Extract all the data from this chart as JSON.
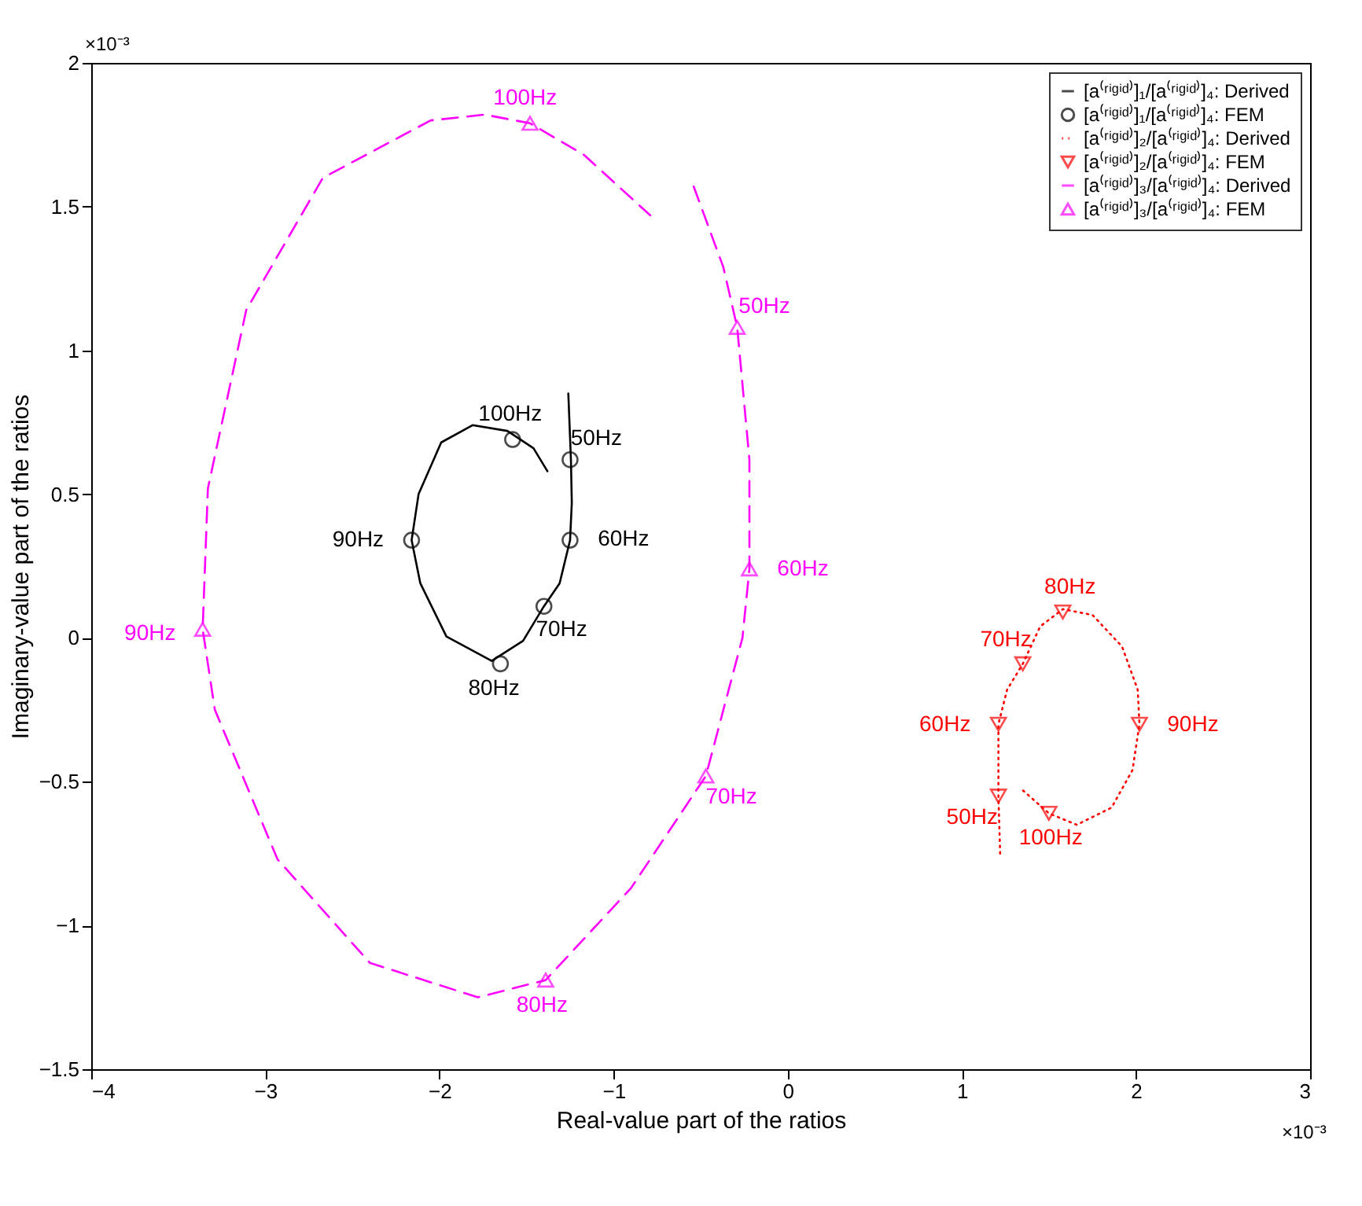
{
  "chart_data": {
    "type": "line",
    "xlabel": "Real-value part of the ratios",
    "ylabel": "Imaginary-value part of the ratios",
    "xlim": [
      -4,
      3
    ],
    "xticks": [
      -4,
      -3,
      -2,
      -1,
      0,
      1,
      2,
      3
    ],
    "ylim": [
      -1.5,
      2
    ],
    "yticks": [
      -1.5,
      -1,
      -0.5,
      0,
      0.5,
      1,
      1.5,
      2
    ],
    "grid": false,
    "legend": "top right",
    "annotations": [
      "×10⁻³",
      "×10⁻³",
      {
        "text": "50Hz",
        "x": -1.25,
        "y": 0.62
      },
      {
        "text": "60Hz",
        "x": -1.25,
        "y": 0.34
      },
      {
        "text": "70Hz",
        "x": -1.4,
        "y": 0.11
      },
      {
        "text": "80Hz",
        "x": -1.65,
        "y": -0.09
      },
      {
        "text": "90Hz",
        "x": -2.16,
        "y": 0.34
      },
      {
        "text": "100Hz",
        "x": -1.58,
        "y": 0.69
      },
      {
        "text": "50Hz",
        "x": 1.21,
        "y": -0.55
      },
      {
        "text": "60Hz",
        "x": 1.21,
        "y": -0.3
      },
      {
        "text": "70Hz",
        "x": 1.35,
        "y": -0.09
      },
      {
        "text": "80Hz",
        "x": 1.58,
        "y": 0.09
      },
      {
        "text": "90Hz",
        "x": 2.02,
        "y": -0.3
      },
      {
        "text": "100Hz",
        "x": 1.5,
        "y": -0.61
      },
      {
        "text": "50Hz",
        "x": -0.29,
        "y": 1.08
      },
      {
        "text": "60Hz",
        "x": -0.22,
        "y": 0.24
      },
      {
        "text": "70Hz",
        "x": -0.47,
        "y": -0.48
      },
      {
        "text": "80Hz",
        "x": -1.39,
        "y": -1.19
      },
      {
        "text": "90Hz",
        "x": -3.36,
        "y": 0.03
      },
      {
        "text": "100Hz",
        "x": -1.48,
        "y": 1.79
      }
    ],
    "series": [
      {
        "name": "[a⁽ʳⁱᵍⁱᵈ⁾]₁/[a⁽ʳⁱᵍⁱᵈ⁾]₄: Derived",
        "color": "#000000",
        "line_style": "solid",
        "marker": "none",
        "x": [
          -1.26,
          -1.245,
          -1.24,
          -1.25,
          -1.31,
          -1.4,
          -1.52,
          -1.7,
          -1.96,
          -2.11,
          -2.16,
          -2.12,
          -1.99,
          -1.81,
          -1.61,
          -1.46,
          -1.38
        ],
        "values": [
          0.85,
          0.62,
          0.47,
          0.34,
          0.19,
          0.11,
          -0.01,
          -0.08,
          0.005,
          0.19,
          0.34,
          0.5,
          0.68,
          0.74,
          0.72,
          0.66,
          0.58
        ]
      },
      {
        "name": "[a⁽ʳⁱᵍⁱᵈ⁾]₁/[a⁽ʳⁱᵍⁱᵈ⁾]₄: FEM",
        "type": "scatter",
        "color": "#000000",
        "marker": "circle",
        "x": [
          -1.25,
          -1.25,
          -1.4,
          -1.65,
          -2.16,
          -1.58
        ],
        "values": [
          0.62,
          0.34,
          0.11,
          -0.09,
          0.34,
          0.69
        ]
      },
      {
        "name": "[a⁽ʳⁱᵍⁱᵈ⁾]₂/[a⁽ʳⁱᵍⁱᵈ⁾]₄: Derived",
        "color": "#ff0000",
        "line_style": "dotted",
        "marker": "none",
        "x": [
          1.22,
          1.21,
          1.21,
          1.26,
          1.35,
          1.45,
          1.58,
          1.75,
          1.92,
          2.01,
          2.02,
          1.98,
          1.86,
          1.66,
          1.5,
          1.35
        ],
        "values": [
          -0.75,
          -0.55,
          -0.3,
          -0.18,
          -0.09,
          0.04,
          0.1,
          0.08,
          -0.03,
          -0.18,
          -0.3,
          -0.46,
          -0.59,
          -0.65,
          -0.61,
          -0.53
        ]
      },
      {
        "name": "[a⁽ʳⁱᵍⁱᵈ⁾]₂/[a⁽ʳⁱᵍⁱᵈ⁾]₄: FEM",
        "type": "scatter",
        "color": "#ff0000",
        "marker": "triangle-down",
        "x": [
          1.21,
          1.21,
          1.35,
          1.58,
          2.02,
          1.5
        ],
        "values": [
          -0.55,
          -0.3,
          -0.09,
          0.09,
          -0.3,
          -0.61
        ]
      },
      {
        "name": "[a⁽ʳⁱᵍⁱᵈ⁾]₃/[a⁽ʳⁱᵍⁱᵈ⁾]₄: Derived",
        "color": "#ff00ff",
        "line_style": "dashed",
        "marker": "none",
        "x": [
          -0.54,
          -0.37,
          -0.29,
          -0.22,
          -0.22,
          -0.26,
          -0.47,
          -0.9,
          -1.39,
          -1.78,
          -2.4,
          -2.93,
          -3.29,
          -3.36,
          -3.33,
          -3.11,
          -2.67,
          -2.05,
          -1.74,
          -1.48,
          -1.17,
          -0.79
        ],
        "values": [
          1.57,
          1.29,
          1.08,
          0.62,
          0.24,
          0.0,
          -0.48,
          -0.87,
          -1.19,
          -1.25,
          -1.13,
          -0.77,
          -0.25,
          0.03,
          0.52,
          1.14,
          1.6,
          1.8,
          1.82,
          1.79,
          1.68,
          1.47
        ]
      },
      {
        "name": "[a⁽ʳⁱᵍⁱᵈ⁾]₃/[a⁽ʳⁱᵍⁱᵈ⁾]₄: FEM",
        "type": "scatter",
        "color": "#ff00ff",
        "marker": "triangle",
        "x": [
          -0.29,
          -0.22,
          -0.47,
          -1.39,
          -3.36,
          -1.48
        ],
        "values": [
          1.08,
          0.24,
          -0.48,
          -1.19,
          0.03,
          1.79
        ]
      }
    ]
  }
}
